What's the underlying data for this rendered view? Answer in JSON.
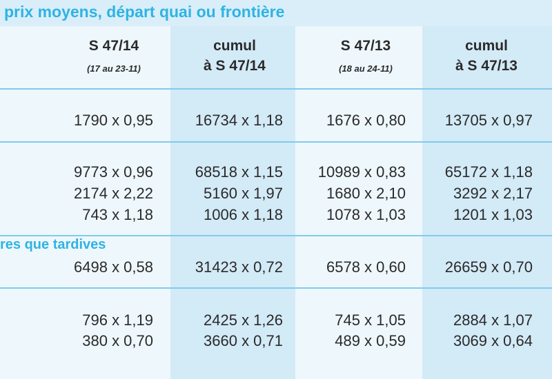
{
  "header": {
    "title": "prix moyens, départ quai ou frontière"
  },
  "columns": [
    {
      "title": "S 47/14",
      "subtitle": "(17 au 23-11)"
    },
    {
      "title": "cumul",
      "subtitle": "à S 47/14"
    },
    {
      "title": "S 47/13",
      "subtitle": "(18 au 24-11)"
    },
    {
      "title": "cumul",
      "subtitle": "à S 47/13"
    }
  ],
  "groups": [
    {
      "rows": [
        [
          "1790 x 0,95",
          "16734 x 1,18",
          "1676 x 0,80",
          "13705 x 0,97"
        ]
      ]
    },
    {
      "rows": [
        [
          "9773 x 0,96",
          "68518 x 1,15",
          "10989 x 0,83",
          "65172 x 1,18"
        ],
        [
          "2174 x 2,22",
          "5160 x 1,97",
          "1680 x 2,10",
          "3292 x 2,17"
        ],
        [
          "743 x 1,18",
          "1006 x 1,18",
          "1078 x 1,03",
          "1201 x 1,03"
        ]
      ]
    },
    {
      "label": "res que tardives",
      "rows": [
        [
          "6498 x 0,58",
          "31423 x 0,72",
          "6578 x 0,60",
          "26659 x 0,70"
        ]
      ]
    },
    {
      "rows": [
        [
          "796 x 1,19",
          "2425 x 1,26",
          "745 x 1,05",
          "2884 x 1,07"
        ],
        [
          "380 x 0,70",
          "3660 x 0,71",
          "489 x 0,59",
          "3069 x 0,64"
        ]
      ]
    }
  ]
}
